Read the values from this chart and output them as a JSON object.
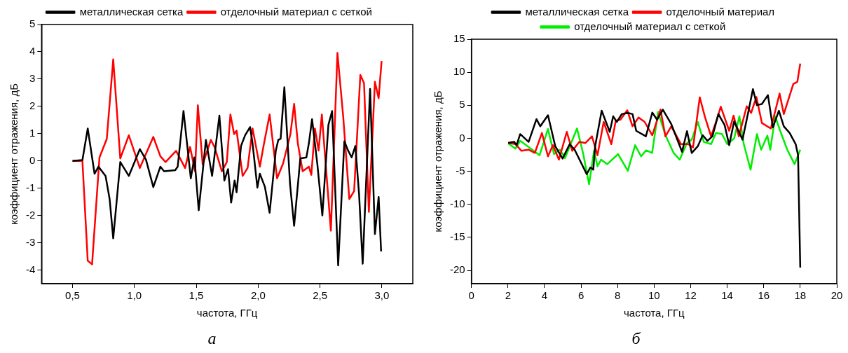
{
  "chart_data": [
    {
      "type": "line",
      "xlabel": "частота, ГГц",
      "ylabel": "коэффициент отражения, дБ",
      "annotations": [
        "а"
      ],
      "legend": "top",
      "xlim": [
        0.25,
        3.25
      ],
      "ylim": [
        -4.5,
        5
      ],
      "xticks": [
        {
          "value": 0.5,
          "label": "0,5"
        },
        {
          "value": 1,
          "label": "1,0"
        },
        {
          "value": 1.5,
          "label": "1,5"
        },
        {
          "value": 2,
          "label": "2,0"
        },
        {
          "value": 2.5,
          "label": "2,5"
        },
        {
          "value": 3,
          "label": "3,0"
        }
      ],
      "yticks": [
        -4,
        -3,
        -2,
        -1,
        0,
        1,
        2,
        3,
        4,
        5
      ],
      "series": [
        {
          "name": "металлическая сетка",
          "color": "#000000",
          "x": [
            0.5,
            0.58,
            0.623,
            0.678,
            0.71,
            0.767,
            0.8,
            0.829,
            0.886,
            0.955,
            1.044,
            1.094,
            1.153,
            1.21,
            1.24,
            1.33,
            1.35,
            1.397,
            1.456,
            1.485,
            1.52,
            1.578,
            1.628,
            1.687,
            1.727,
            1.757,
            1.782,
            1.81,
            1.826,
            1.862,
            1.895,
            1.935,
            1.955,
            1.994,
            2.014,
            2.054,
            2.093,
            2.143,
            2.163,
            2.182,
            2.212,
            2.258,
            2.291,
            2.341,
            2.39,
            2.41,
            2.436,
            2.479,
            2.519,
            2.568,
            2.598,
            2.647,
            2.697,
            2.727,
            2.756,
            2.786,
            2.816,
            2.845,
            2.905,
            2.944,
            2.974,
            2.994
          ],
          "values": [
            0,
            0.03,
            1.19,
            -0.47,
            -0.21,
            -0.55,
            -1.4,
            -2.84,
            -0.04,
            -0.55,
            0.43,
            0.04,
            -0.96,
            -0.21,
            -0.38,
            -0.34,
            -0.21,
            1.83,
            -0.64,
            0.13,
            -1.81,
            0.77,
            -0.55,
            1.66,
            -0.72,
            -0.3,
            -1.53,
            -0.72,
            -1.15,
            0.55,
            0.94,
            1.24,
            0.64,
            -0.98,
            -0.47,
            -0.94,
            -1.9,
            0.38,
            0.77,
            0.81,
            2.7,
            -0.85,
            -2.38,
            0.09,
            0.13,
            0.64,
            1.53,
            -0.13,
            -2.0,
            1.32,
            1.83,
            -3.83,
            0.72,
            0.38,
            0.13,
            0.55,
            -1.23,
            -3.77,
            2.64,
            -2.68,
            -1.32,
            -3.32
          ]
        },
        {
          "name": "отделочный материал с сеткой",
          "color": "#ff0000",
          "x": [
            0.5,
            0.58,
            0.623,
            0.658,
            0.718,
            0.777,
            0.829,
            0.886,
            0.955,
            1.044,
            1.153,
            1.21,
            1.252,
            1.337,
            1.41,
            1.45,
            1.49,
            1.513,
            1.552,
            1.618,
            1.648,
            1.707,
            1.747,
            1.776,
            1.806,
            1.826,
            1.875,
            1.915,
            1.955,
            2.014,
            2.044,
            2.093,
            2.153,
            2.202,
            2.261,
            2.291,
            2.321,
            2.36,
            2.41,
            2.43,
            2.459,
            2.489,
            2.515,
            2.588,
            2.641,
            2.687,
            2.737,
            2.776,
            2.826,
            2.856,
            2.895,
            2.944,
            2.974,
            2.998
          ],
          "values": [
            0,
            0,
            -3.66,
            -3.79,
            0.13,
            0.81,
            3.72,
            0.09,
            0.94,
            -0.26,
            0.88,
            0.17,
            -0.04,
            0.37,
            -0.26,
            0.51,
            -0.38,
            2.04,
            -0.13,
            0.77,
            0.51,
            -0.38,
            -0.04,
            1.7,
            0.98,
            1.11,
            -0.55,
            -0.26,
            1.19,
            -0.21,
            0.55,
            1.7,
            -0.64,
            -0.09,
            0.98,
            2.09,
            0.64,
            -0.38,
            -0.21,
            -0.51,
            1.19,
            0.38,
            1.7,
            -2.56,
            3.96,
            1.66,
            -1.4,
            -1.11,
            3.15,
            2.85,
            -1.87,
            2.9,
            2.3,
            3.66
          ]
        }
      ]
    },
    {
      "type": "line",
      "xlabel": "частота, ГГц",
      "ylabel": "коэффициент отражения, дБ",
      "annotations": [
        "б"
      ],
      "legend": "top",
      "xlim": [
        0,
        20
      ],
      "ylim": [
        -22,
        15
      ],
      "xticks": [
        0,
        2,
        4,
        6,
        8,
        10,
        12,
        14,
        16,
        18,
        20
      ],
      "yticks": [
        -20,
        -15,
        -10,
        -5,
        0,
        5,
        10,
        15
      ],
      "series": [
        {
          "name": "металлическая сетка",
          "color": "#000000",
          "x": [
            2.01,
            2.34,
            2.47,
            2.67,
            3.13,
            3.56,
            3.77,
            4.19,
            4.59,
            4.99,
            5.38,
            5.65,
            6.31,
            6.51,
            6.67,
            6.77,
            7.13,
            7.57,
            7.76,
            7.96,
            8.23,
            8.56,
            8.82,
            9.02,
            9.55,
            9.9,
            10.16,
            10.48,
            10.94,
            11.53,
            11.8,
            12.06,
            12.39,
            12.66,
            12.92,
            13.19,
            13.52,
            13.86,
            14.11,
            14.38,
            14.84,
            15.17,
            15.41,
            15.63,
            15.9,
            16.23,
            16.5,
            16.83,
            17.1,
            17.42,
            17.75,
            17.88,
            18.0
          ],
          "values": [
            -0.7,
            -0.54,
            -1.04,
            0.64,
            -0.54,
            2.9,
            1.82,
            3.5,
            -1.21,
            -3.06,
            -0.88,
            -1.72,
            -5.42,
            -4.41,
            -4.75,
            -1.21,
            4.18,
            0.98,
            3.33,
            2.49,
            3.67,
            3.84,
            3.67,
            1.14,
            0.3,
            3.9,
            2.83,
            4.34,
            2.15,
            -2.05,
            1.08,
            -2.22,
            -1.21,
            0.47,
            -0.38,
            0.3,
            3.67,
            2.0,
            -1.04,
            2.56,
            -0.2,
            4.18,
            7.44,
            5.02,
            5.19,
            6.53,
            1.65,
            4.18,
            1.82,
            0.81,
            -0.88,
            -2.56,
            -19.56
          ]
        },
        {
          "name": "отделочный материал",
          "color": "#ff0000",
          "x": [
            2.01,
            2.41,
            2.74,
            3.13,
            3.47,
            3.86,
            4.19,
            4.46,
            4.79,
            5.22,
            5.52,
            5.91,
            6.24,
            6.6,
            6.9,
            7.24,
            7.66,
            7.9,
            8.16,
            8.53,
            8.82,
            9.15,
            9.48,
            9.9,
            10.35,
            10.62,
            10.94,
            11.47,
            11.87,
            12.13,
            12.5,
            12.79,
            13.12,
            13.39,
            13.65,
            14.11,
            14.35,
            14.64,
            15.07,
            15.31,
            15.6,
            15.9,
            16.39,
            16.87,
            17.1,
            17.62,
            17.84,
            18.0
          ],
          "values": [
            -0.7,
            -0.88,
            -1.89,
            -1.72,
            -2.22,
            0.81,
            -2.73,
            -1.04,
            -3.23,
            0.98,
            -1.89,
            -0.54,
            -0.71,
            0.3,
            -2.56,
            2.49,
            -0.88,
            2.66,
            2.83,
            4.24,
            1.82,
            3.16,
            2.49,
            0.47,
            4.34,
            0.3,
            1.82,
            -0.88,
            -0.88,
            -1.38,
            6.2,
            3.16,
            0.3,
            2.49,
            4.78,
            1.14,
            3.43,
            0.3,
            4.85,
            3.84,
            6.26,
            2.32,
            1.48,
            6.77,
            3.67,
            8.22,
            8.55,
            11.31
          ]
        },
        {
          "name": "отделочный материал с сеткой",
          "color": "#00ee00",
          "x": [
            2.01,
            2.41,
            2.67,
            3.33,
            3.73,
            4.19,
            4.52,
            4.85,
            5.12,
            5.78,
            6.11,
            6.44,
            6.71,
            6.9,
            7.1,
            7.43,
            8.03,
            8.56,
            8.96,
            9.29,
            9.56,
            9.89,
            10.22,
            10.62,
            11.07,
            11.4,
            11.8,
            12.06,
            12.39,
            12.72,
            13.12,
            13.39,
            13.72,
            14.0,
            14.38,
            14.67,
            14.91,
            15.28,
            15.63,
            15.86,
            16.2,
            16.36,
            16.63,
            16.9,
            17.29,
            17.69,
            18.0
          ],
          "values": [
            -0.77,
            -1.55,
            -0.37,
            -1.72,
            -2.56,
            1.41,
            -2.39,
            -1.72,
            -3.0,
            1.48,
            -2.22,
            -6.94,
            -1.89,
            -4.24,
            -3.23,
            -3.91,
            -2.39,
            -4.92,
            -1.04,
            -2.73,
            -1.82,
            -2.22,
            4.0,
            0.47,
            -2.22,
            -3.23,
            -0.71,
            -0.2,
            2.49,
            -0.54,
            -0.88,
            0.81,
            0.64,
            -0.88,
            -0.03,
            3.33,
            -0.88,
            -4.75,
            0.64,
            -1.72,
            0.4,
            -1.72,
            3.33,
            1.14,
            -1.72,
            -3.91,
            -1.72
          ]
        }
      ]
    }
  ]
}
